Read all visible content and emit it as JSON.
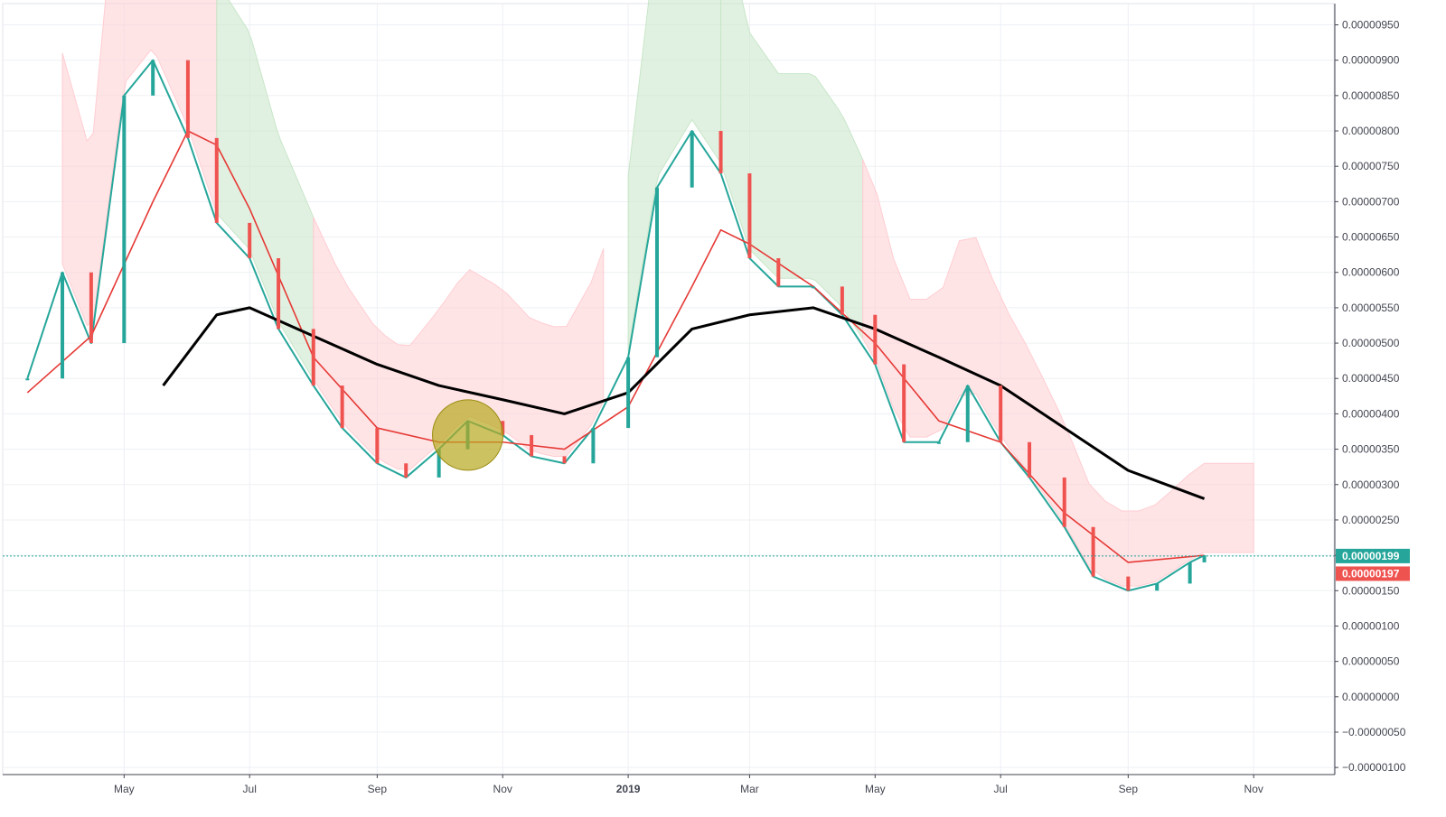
{
  "chart_data": {
    "type": "line",
    "title": "",
    "xlabel": "",
    "ylabel": "",
    "x_ticks": [
      "May",
      "Jul",
      "Sep",
      "Nov",
      "2019",
      "Mar",
      "May",
      "Jul",
      "Sep",
      "Nov"
    ],
    "y_ticks": [
      "0.00000950",
      "0.00000900",
      "0.00000850",
      "0.00000800",
      "0.00000750",
      "0.00000700",
      "0.00000650",
      "0.00000600",
      "0.00000550",
      "0.00000500",
      "0.00000450",
      "0.00000400",
      "0.00000350",
      "0.00000300",
      "0.00000250",
      "0.00000200",
      "0.00000150",
      "0.00000100",
      "0.00000050",
      "0.00000000",
      "−0.00000050",
      "−0.00000100"
    ],
    "y_tick_values": [
      9.5e-06,
      9e-06,
      8.5e-06,
      8e-06,
      7.5e-06,
      7e-06,
      6.5e-06,
      6e-06,
      5.5e-06,
      5e-06,
      4.5e-06,
      4e-06,
      3.5e-06,
      3e-06,
      2.5e-06,
      2e-06,
      1.5e-06,
      1e-06,
      5e-07,
      0,
      -5e-07,
      -1e-06
    ],
    "ylim": [
      -1.1e-06,
      9.8e-06
    ],
    "grid": true,
    "last_price": {
      "label": "0.00000199",
      "value": 1.99e-06,
      "color": "#26a69a"
    },
    "ema_value": {
      "label": "0.00000197",
      "value": 1.97e-06,
      "color": "#ef5350"
    },
    "series": [
      {
        "role": "price",
        "x": [
          "2018-03-15",
          "2018-04-01",
          "2018-04-15",
          "2018-05-01",
          "2018-05-15",
          "2018-06-01",
          "2018-06-15",
          "2018-07-01",
          "2018-07-15",
          "2018-08-01",
          "2018-08-15",
          "2018-09-01",
          "2018-09-15",
          "2018-10-01",
          "2018-10-15",
          "2018-11-01",
          "2018-11-15",
          "2018-12-01",
          "2018-12-15",
          "2019-01-01",
          "2019-01-15",
          "2019-02-01",
          "2019-02-15",
          "2019-03-01",
          "2019-03-15",
          "2019-04-01",
          "2019-04-15",
          "2019-05-01",
          "2019-05-15",
          "2019-06-01",
          "2019-06-15",
          "2019-07-01",
          "2019-07-15",
          "2019-08-01",
          "2019-08-15",
          "2019-09-01",
          "2019-09-15",
          "2019-10-01",
          "2019-10-08"
        ],
        "values": [
          4.5e-06,
          6e-06,
          5e-06,
          8.5e-06,
          9e-06,
          7.9e-06,
          6.7e-06,
          6.2e-06,
          5.2e-06,
          4.4e-06,
          3.8e-06,
          3.3e-06,
          3.1e-06,
          3.5e-06,
          3.9e-06,
          3.7e-06,
          3.4e-06,
          3.3e-06,
          3.8e-06,
          4.8e-06,
          7.2e-06,
          8e-06,
          7.4e-06,
          6.2e-06,
          5.8e-06,
          5.8e-06,
          5.4e-06,
          4.7e-06,
          3.6e-06,
          3.6e-06,
          4.4e-06,
          3.6e-06,
          3.1e-06,
          2.4e-06,
          1.7e-06,
          1.5e-06,
          1.6e-06,
          1.9e-06,
          2e-06
        ],
        "color": "#26a69a"
      },
      {
        "role": "ema",
        "x": [
          "2018-03-15",
          "2018-04-15",
          "2018-05-15",
          "2018-06-01",
          "2018-06-15",
          "2018-07-01",
          "2018-08-01",
          "2018-09-01",
          "2018-10-01",
          "2018-11-01",
          "2018-12-01",
          "2019-01-01",
          "2019-02-01",
          "2019-02-15",
          "2019-03-01",
          "2019-04-01",
          "2019-05-01",
          "2019-06-01",
          "2019-07-01",
          "2019-08-01",
          "2019-09-01",
          "2019-10-08"
        ],
        "values": [
          4.3e-06,
          5.1e-06,
          7e-06,
          8e-06,
          7.8e-06,
          6.9e-06,
          4.8e-06,
          3.8e-06,
          3.6e-06,
          3.6e-06,
          3.5e-06,
          4.1e-06,
          5.8e-06,
          6.6e-06,
          6.4e-06,
          5.8e-06,
          5e-06,
          3.9e-06,
          3.6e-06,
          2.6e-06,
          1.9e-06,
          2e-06
        ],
        "color": "#e53935"
      },
      {
        "role": "long-ma",
        "x": [
          "2018-05-20",
          "2018-06-15",
          "2018-07-01",
          "2018-08-01",
          "2018-09-01",
          "2018-10-01",
          "2018-11-01",
          "2018-12-01",
          "2019-01-01",
          "2019-02-01",
          "2019-03-01",
          "2019-04-01",
          "2019-05-01",
          "2019-06-01",
          "2019-07-01",
          "2019-08-01",
          "2019-09-01",
          "2019-10-08"
        ],
        "values": [
          4.4e-06,
          5.4e-06,
          5.5e-06,
          5.1e-06,
          4.7e-06,
          4.4e-06,
          4.2e-06,
          4e-06,
          4.3e-06,
          5.2e-06,
          5.4e-06,
          5.5e-06,
          5.2e-06,
          4.8e-06,
          4.4e-06,
          3.8e-06,
          3.2e-06,
          2.8e-06
        ],
        "color": "#000000"
      }
    ],
    "cloud_regions": [
      {
        "color": "#ffcdd2",
        "from": "2018-04-01",
        "to": "2018-06-15"
      },
      {
        "color": "#c8e6c9",
        "from": "2018-06-15",
        "to": "2018-08-01"
      },
      {
        "color": "#ffcdd2",
        "from": "2018-08-01",
        "to": "2018-12-20"
      },
      {
        "color": "#c8e6c9",
        "from": "2019-01-01",
        "to": "2019-02-15"
      },
      {
        "color": "#c8e6c9",
        "from": "2019-02-15",
        "to": "2019-04-25"
      },
      {
        "color": "#ffcdd2",
        "from": "2019-04-25",
        "to": "2019-11-01"
      }
    ],
    "highlight_marker": {
      "x": "2018-10-15",
      "y": 3.7e-06,
      "color": "#b8a820"
    }
  }
}
